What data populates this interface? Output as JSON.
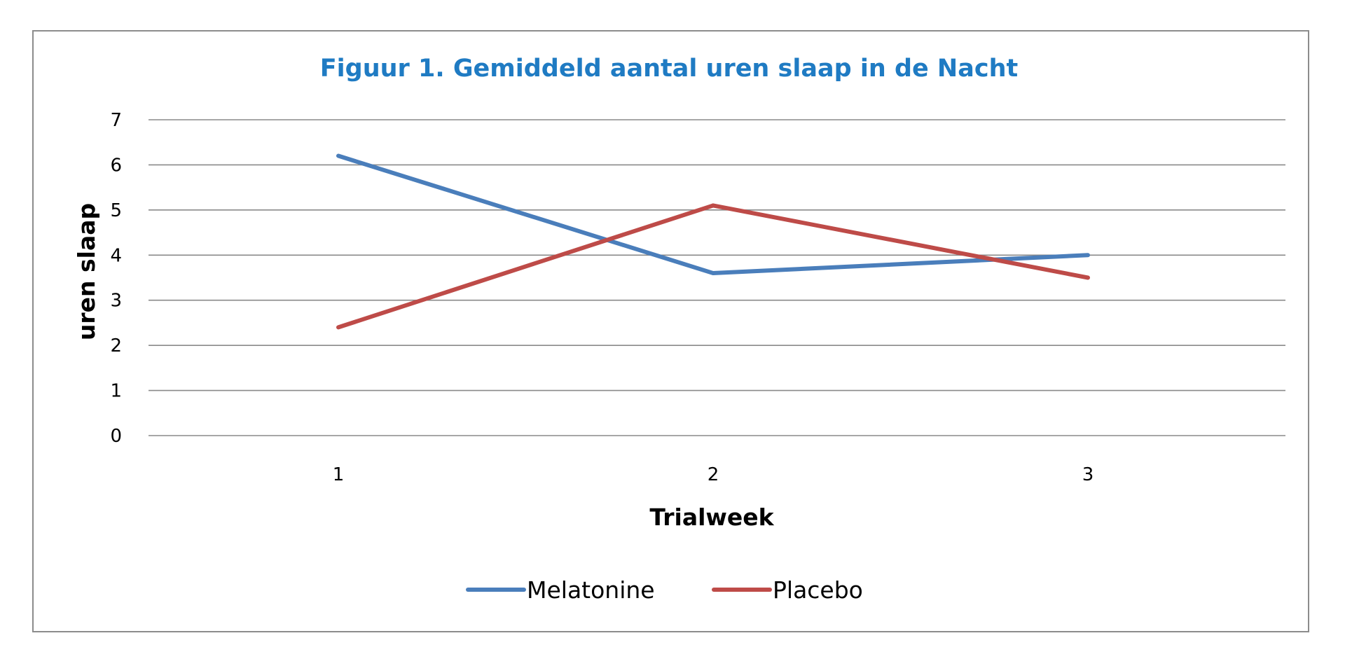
{
  "chart_data": {
    "type": "line",
    "title": "Figuur 1. Gemiddeld aantal uren slaap in de Nacht",
    "xlabel": "Trialweek",
    "ylabel": "uren slaap",
    "categories": [
      "1",
      "2",
      "3"
    ],
    "yticks": [
      "0",
      "1",
      "2",
      "3",
      "4",
      "5",
      "6",
      "7"
    ],
    "ylim": [
      0,
      7
    ],
    "grid": true,
    "legend_position": "bottom",
    "series": [
      {
        "name": "Melatonine",
        "color": "#4a7ebb",
        "values": [
          6.2,
          3.6,
          4.0
        ]
      },
      {
        "name": "Placebo",
        "color": "#be4b48",
        "values": [
          2.4,
          5.1,
          3.5
        ]
      }
    ]
  }
}
